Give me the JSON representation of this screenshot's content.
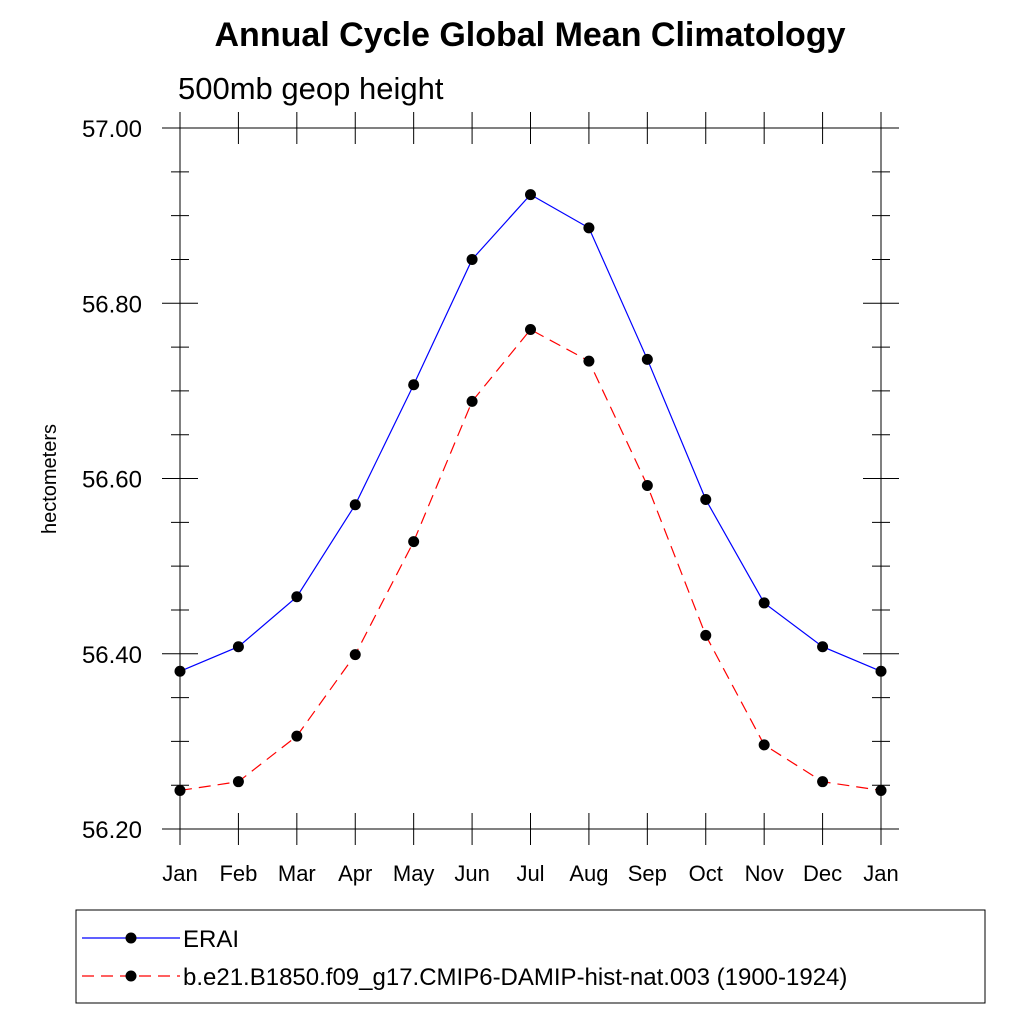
{
  "chart_data": {
    "type": "line",
    "title": "Annual Cycle Global Mean Climatology",
    "subtitle": "500mb geop height",
    "xlabel": "",
    "ylabel": "hectometers",
    "categories": [
      "Jan",
      "Feb",
      "Mar",
      "Apr",
      "May",
      "Jun",
      "Jul",
      "Aug",
      "Sep",
      "Oct",
      "Nov",
      "Dec",
      "Jan"
    ],
    "ylim": [
      56.2,
      57.0
    ],
    "yticks": [
      56.2,
      56.4,
      56.6,
      56.8,
      57.0
    ],
    "ytick_labels": [
      "56.20",
      "56.40",
      "56.60",
      "56.80",
      "57.00"
    ],
    "grid": false,
    "legend_position": "bottom",
    "series": [
      {
        "name": "ERAI",
        "color": "#0000ff",
        "line_style": "solid",
        "marker": "filled-circle",
        "values": [
          56.38,
          56.408,
          56.465,
          56.57,
          56.707,
          56.85,
          56.924,
          56.886,
          56.736,
          56.576,
          56.458,
          56.408,
          56.38
        ]
      },
      {
        "name": "b.e21.B1850.f09_g17.CMIP6-DAMIP-hist-nat.003 (1900-1924)",
        "color": "#ff0000",
        "line_style": "dashed",
        "marker": "filled-circle",
        "values": [
          56.244,
          56.254,
          56.306,
          56.399,
          56.528,
          56.688,
          56.77,
          56.734,
          56.592,
          56.421,
          56.296,
          56.254,
          56.244
        ]
      }
    ]
  }
}
